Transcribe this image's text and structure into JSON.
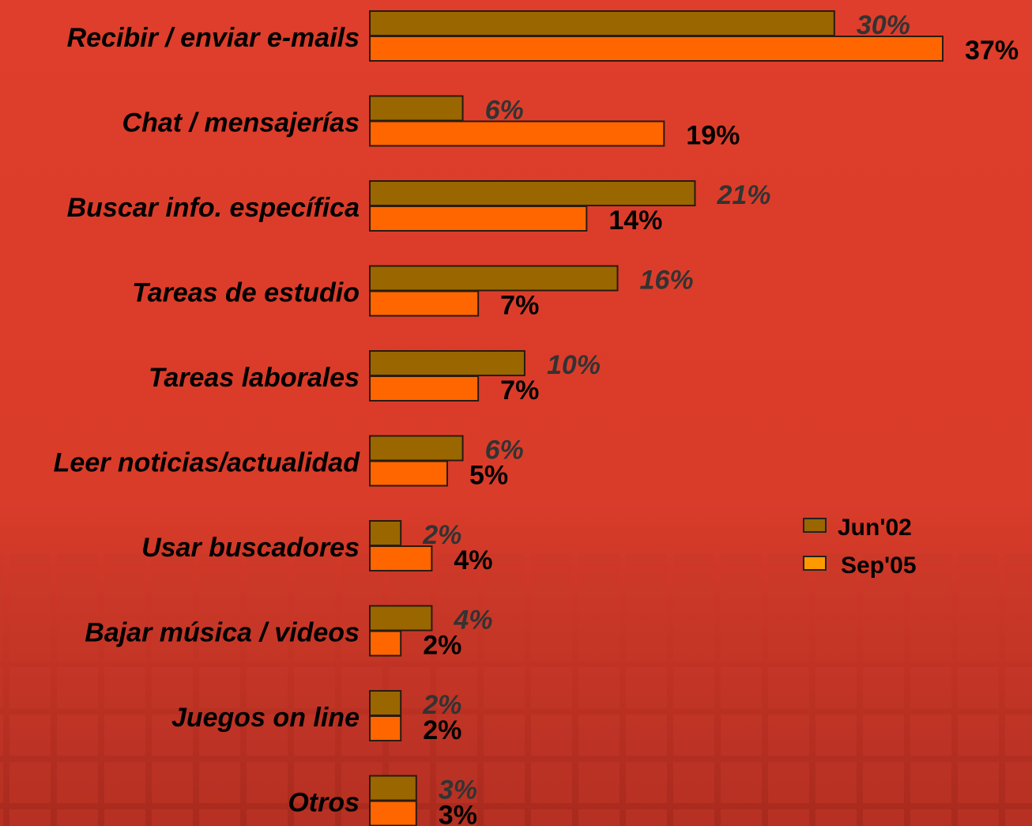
{
  "chart_data": {
    "type": "bar",
    "orientation": "horizontal",
    "categories": [
      "Recibir / enviar e-mails",
      "Chat / mensajerías",
      "Buscar info. específica",
      "Tareas de estudio",
      "Tareas laborales",
      "Leer noticias/actualidad",
      "Usar buscadores",
      "Bajar música / videos",
      "Juegos on line",
      "Otros"
    ],
    "series": [
      {
        "name": "Jun'02",
        "color": "#996600",
        "values": [
          30,
          6,
          21,
          16,
          10,
          6,
          2,
          4,
          2,
          3
        ],
        "value_labels": [
          "30%",
          "6%",
          "21%",
          "16%",
          "10%",
          "6%",
          "2%",
          "4%",
          "2%",
          "3%"
        ]
      },
      {
        "name": "Sep'05",
        "color": "#ff6600",
        "values": [
          37,
          19,
          14,
          7,
          7,
          5,
          4,
          2,
          2,
          3
        ],
        "value_labels": [
          "37%",
          "19%",
          "14%",
          "7%",
          "7%",
          "5%",
          "4%",
          "2%",
          "2%",
          "3%"
        ]
      }
    ],
    "legend": "right"
  }
}
